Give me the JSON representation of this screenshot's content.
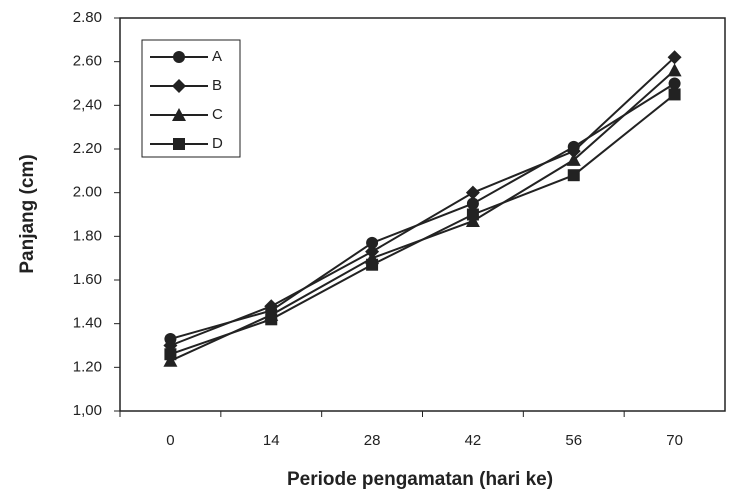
{
  "chart_data": {
    "type": "line",
    "x_label": "Periode pengamatan (hari ke)",
    "y_label": "Panjang (cm)",
    "categories": [
      "0",
      "14",
      "28",
      "42",
      "56",
      "70"
    ],
    "series": [
      {
        "name": "A",
        "color": "#222222",
        "marker": "circle",
        "values": [
          1.33,
          1.46,
          1.77,
          1.95,
          2.21,
          2.5
        ]
      },
      {
        "name": "B",
        "color": "#222222",
        "marker": "diamond",
        "values": [
          1.3,
          1.48,
          1.73,
          2.0,
          2.19,
          2.62
        ]
      },
      {
        "name": "C",
        "color": "#222222",
        "marker": "triangle",
        "values": [
          1.23,
          1.44,
          1.7,
          1.87,
          2.15,
          2.56
        ]
      },
      {
        "name": "D",
        "color": "#222222",
        "marker": "square",
        "values": [
          1.26,
          1.42,
          1.67,
          1.9,
          2.08,
          2.45
        ]
      }
    ],
    "ylim": [
      1.0,
      2.8
    ],
    "yticks": [
      {
        "value": 1.0,
        "label": "1,00"
      },
      {
        "value": 1.2,
        "label": "1.20"
      },
      {
        "value": 1.4,
        "label": "1.40"
      },
      {
        "value": 1.6,
        "label": "1.60"
      },
      {
        "value": 1.8,
        "label": "1.80"
      },
      {
        "value": 2.0,
        "label": "2.00"
      },
      {
        "value": 2.2,
        "label": "2.20"
      },
      {
        "value": 2.4,
        "label": "2,40"
      },
      {
        "value": 2.6,
        "label": "2.60"
      },
      {
        "value": 2.8,
        "label": "2.80"
      }
    ],
    "grid": false,
    "legend": "upper left"
  }
}
